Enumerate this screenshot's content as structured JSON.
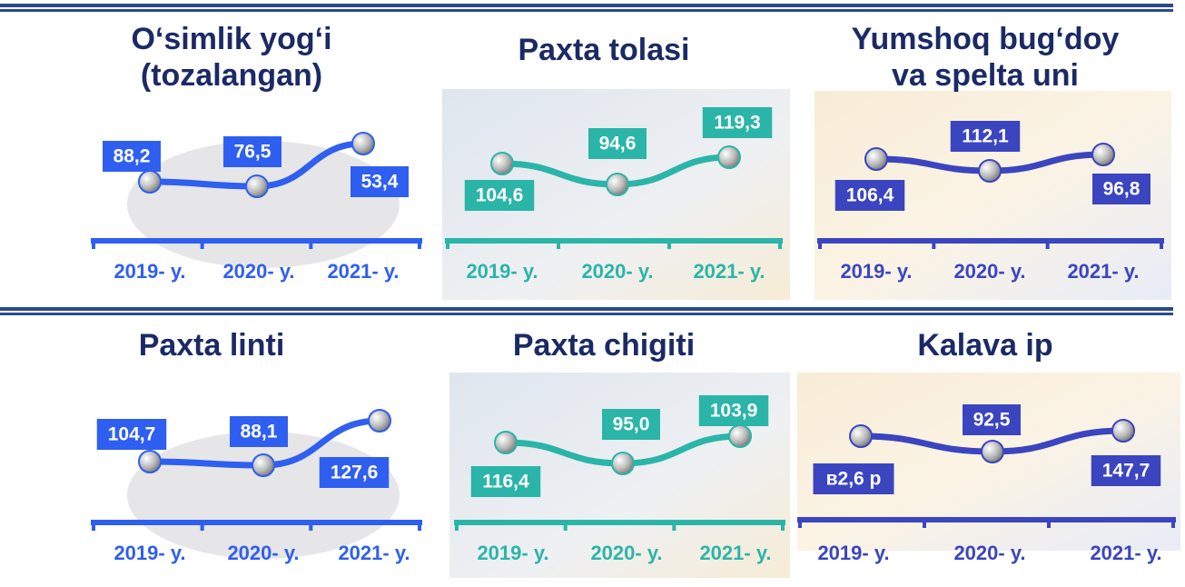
{
  "panels": [
    {
      "title": [
        "O‘simlik yog‘i",
        "(tozalangan)"
      ],
      "values": [
        "88,2",
        "76,5",
        "53,4"
      ],
      "years": [
        "2019- y.",
        "2020- y.",
        "2021- y."
      ]
    },
    {
      "title": [
        "Paxta tolasi"
      ],
      "values": [
        "104,6",
        "94,6",
        "119,3"
      ],
      "years": [
        "2019- y.",
        "2020- y.",
        "2021- y."
      ]
    },
    {
      "title": [
        "Yumshoq bug‘doy",
        "va spelta uni"
      ],
      "values": [
        "106,4",
        "112,1",
        "96,8"
      ],
      "years": [
        "2019- y.",
        "2020- y.",
        "2021- y."
      ]
    },
    {
      "title": [
        "Paxta linti"
      ],
      "values": [
        "104,7",
        "88,1",
        "127,6"
      ],
      "years": [
        "2019- y.",
        "2020- y.",
        "2021- y."
      ]
    },
    {
      "title": [
        "Paxta chigiti"
      ],
      "values": [
        "116,4",
        "95,0",
        "103,9"
      ],
      "years": [
        "2019- y.",
        "2020- y.",
        "2021- y."
      ]
    },
    {
      "title": [
        "Kalava ip"
      ],
      "values": [
        "в2,6 р",
        "92,5",
        "147,7"
      ],
      "years": [
        "2019- y.",
        "2020- y.",
        "2021- y."
      ]
    }
  ]
}
